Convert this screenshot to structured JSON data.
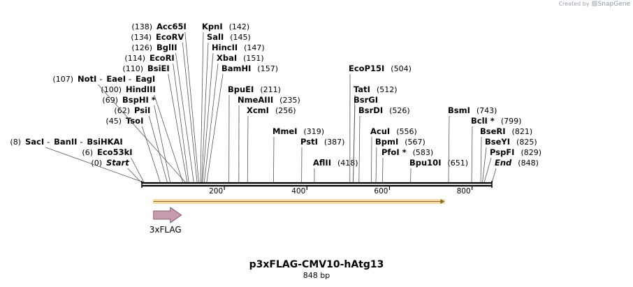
{
  "credit": {
    "created_by": "Created by",
    "app": "SnapGene"
  },
  "title": "p3xFLAG-CMV10-hAtg13",
  "length_label": "848 bp",
  "sequence_length": 848,
  "ruler_ticks": [
    {
      "bp": 200,
      "label": "200"
    },
    {
      "bp": 400,
      "label": "400"
    },
    {
      "bp": 600,
      "label": "600"
    },
    {
      "bp": 800,
      "label": "800"
    }
  ],
  "features": [
    {
      "name": "orf",
      "label": "",
      "start": 30,
      "end": 730,
      "direction": "forward",
      "color": "#f5a623"
    },
    {
      "name": "3xflag",
      "label": "3xFLAG",
      "start": 30,
      "end": 96,
      "direction": "forward",
      "color": "#c79ab0"
    }
  ],
  "sites": [
    {
      "type": "marker",
      "names": [
        "Start"
      ],
      "pos": "(0)",
      "bp": 0,
      "pos_side": "left"
    },
    {
      "type": "enzyme",
      "names": [
        "Eco53kI"
      ],
      "pos": "(6)",
      "bp": 6,
      "pos_side": "left"
    },
    {
      "type": "enzyme",
      "names": [
        "SacI",
        "BanII",
        "BsiHKAI"
      ],
      "pos": "(8)",
      "bp": 8,
      "pos_side": "left"
    },
    {
      "type": "enzyme",
      "names": [
        "TsoI"
      ],
      "pos": "(45)",
      "bp": 45,
      "pos_side": "left"
    },
    {
      "type": "enzyme",
      "names": [
        "PsiI"
      ],
      "pos": "(62)",
      "bp": 62,
      "pos_side": "left"
    },
    {
      "type": "enzyme",
      "names": [
        "BspHI *"
      ],
      "pos": "(69)",
      "bp": 69,
      "pos_side": "left"
    },
    {
      "type": "enzyme",
      "names": [
        "HindIII"
      ],
      "pos": "(100)",
      "bp": 100,
      "pos_side": "left"
    },
    {
      "type": "enzyme",
      "names": [
        "NotI",
        "EaeI",
        "EagI"
      ],
      "pos": "(107)",
      "bp": 107,
      "pos_side": "left"
    },
    {
      "type": "enzyme",
      "names": [
        "BsiEI"
      ],
      "pos": "(110)",
      "bp": 110,
      "pos_side": "left"
    },
    {
      "type": "enzyme",
      "names": [
        "EcoRI"
      ],
      "pos": "(114)",
      "bp": 114,
      "pos_side": "left"
    },
    {
      "type": "enzyme",
      "names": [
        "BglII"
      ],
      "pos": "(126)",
      "bp": 126,
      "pos_side": "left"
    },
    {
      "type": "enzyme",
      "names": [
        "EcoRV"
      ],
      "pos": "(134)",
      "bp": 134,
      "pos_side": "left"
    },
    {
      "type": "enzyme",
      "names": [
        "Acc65I"
      ],
      "pos": "(138)",
      "bp": 138,
      "pos_side": "left"
    },
    {
      "type": "enzyme",
      "names": [
        "KpnI"
      ],
      "pos": "(142)",
      "bp": 142,
      "pos_side": "right"
    },
    {
      "type": "enzyme",
      "names": [
        "SalI"
      ],
      "pos": "(145)",
      "bp": 145,
      "pos_side": "right"
    },
    {
      "type": "enzyme",
      "names": [
        "HincII"
      ],
      "pos": "(147)",
      "bp": 147,
      "pos_side": "right"
    },
    {
      "type": "enzyme",
      "names": [
        "XbaI"
      ],
      "pos": "(151)",
      "bp": 151,
      "pos_side": "right"
    },
    {
      "type": "enzyme",
      "names": [
        "BamHI"
      ],
      "pos": "(157)",
      "bp": 157,
      "pos_side": "right"
    },
    {
      "type": "enzyme",
      "names": [
        "BpuEI"
      ],
      "pos": "(211)",
      "bp": 211,
      "pos_side": "right"
    },
    {
      "type": "enzyme",
      "names": [
        "NmeAIII"
      ],
      "pos": "(235)",
      "bp": 235,
      "pos_side": "right"
    },
    {
      "type": "enzyme",
      "names": [
        "XcmI"
      ],
      "pos": "(256)",
      "bp": 256,
      "pos_side": "right"
    },
    {
      "type": "enzyme",
      "names": [
        "MmeI"
      ],
      "pos": "(319)",
      "bp": 319,
      "pos_side": "right"
    },
    {
      "type": "enzyme",
      "names": [
        "PstI"
      ],
      "pos": "(387)",
      "bp": 387,
      "pos_side": "right"
    },
    {
      "type": "enzyme",
      "names": [
        "AflII"
      ],
      "pos": "(418)",
      "bp": 418,
      "pos_side": "right"
    },
    {
      "type": "enzyme",
      "names": [
        "EcoP15I"
      ],
      "pos": "(504)",
      "bp": 504,
      "pos_side": "right"
    },
    {
      "type": "enzyme",
      "names": [
        "TatI"
      ],
      "pos": "(512)",
      "bp": 512,
      "pos_side": "right"
    },
    {
      "type": "enzyme",
      "names": [
        "BsrGI"
      ],
      "pos": "",
      "bp": 512,
      "pos_side": "right"
    },
    {
      "type": "enzyme",
      "names": [
        "BsrDI"
      ],
      "pos": "(526)",
      "bp": 526,
      "pos_side": "right"
    },
    {
      "type": "enzyme",
      "names": [
        "AcuI"
      ],
      "pos": "(556)",
      "bp": 556,
      "pos_side": "right"
    },
    {
      "type": "enzyme",
      "names": [
        "BpmI"
      ],
      "pos": "(567)",
      "bp": 567,
      "pos_side": "right"
    },
    {
      "type": "enzyme",
      "names": [
        "PfoI *"
      ],
      "pos": "(583)",
      "bp": 583,
      "pos_side": "right"
    },
    {
      "type": "enzyme",
      "names": [
        "Bpu10I"
      ],
      "pos": "(651)",
      "bp": 651,
      "pos_side": "right"
    },
    {
      "type": "enzyme",
      "names": [
        "BsmI"
      ],
      "pos": "(743)",
      "bp": 743,
      "pos_side": "right"
    },
    {
      "type": "enzyme",
      "names": [
        "BclI *"
      ],
      "pos": "(799)",
      "bp": 799,
      "pos_side": "right"
    },
    {
      "type": "enzyme",
      "names": [
        "BseRI"
      ],
      "pos": "(821)",
      "bp": 821,
      "pos_side": "right"
    },
    {
      "type": "enzyme",
      "names": [
        "BseYI"
      ],
      "pos": "(825)",
      "bp": 825,
      "pos_side": "right"
    },
    {
      "type": "enzyme",
      "names": [
        "PspFI"
      ],
      "pos": "(829)",
      "bp": 829,
      "pos_side": "right"
    },
    {
      "type": "marker",
      "names": [
        "End"
      ],
      "pos": "(848)",
      "bp": 848,
      "pos_side": "right"
    }
  ]
}
